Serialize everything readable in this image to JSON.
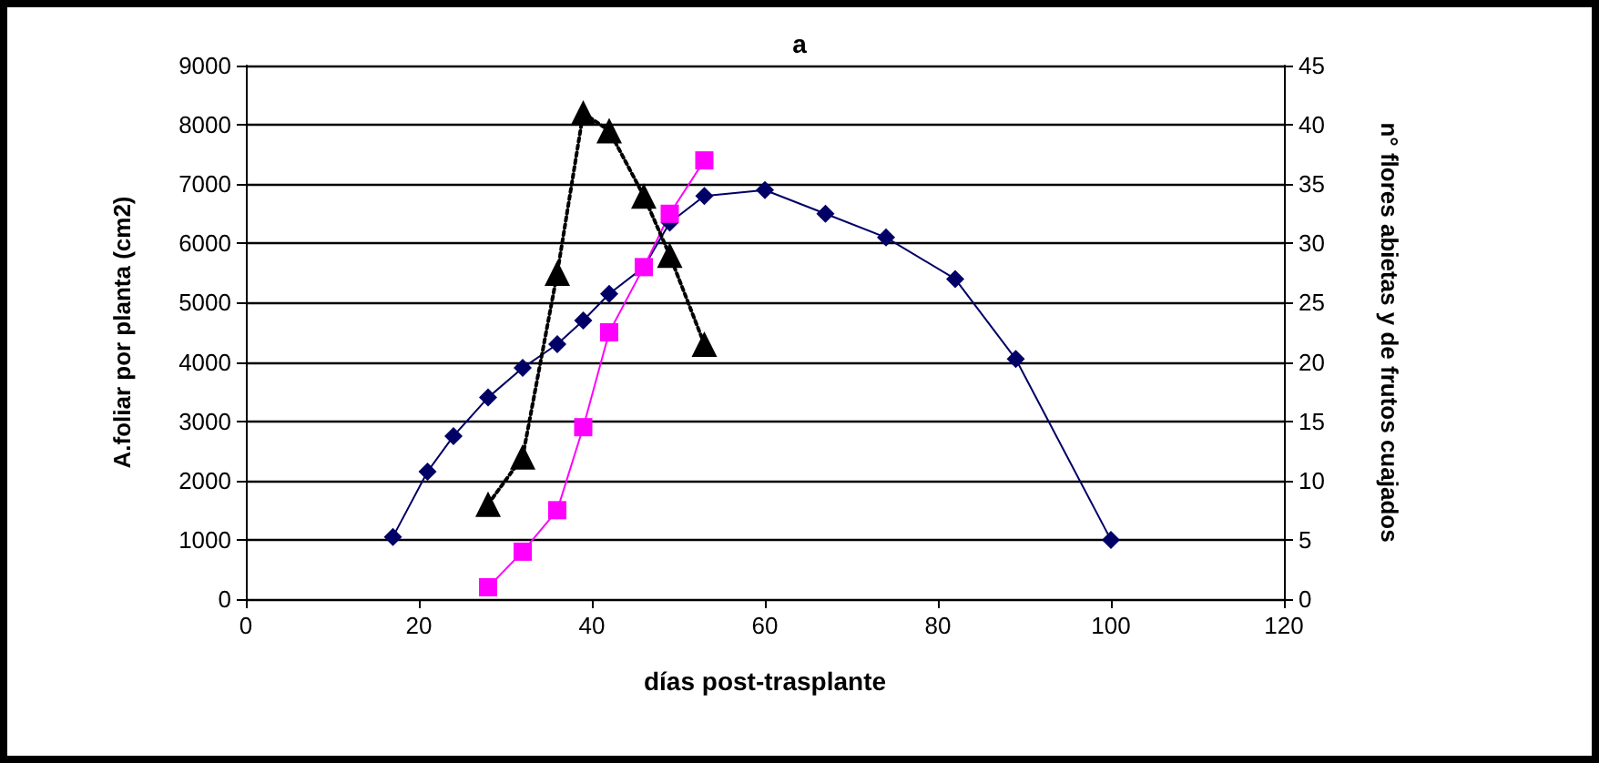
{
  "chart_data": {
    "type": "line",
    "title": "a",
    "xlabel": "días post-trasplante",
    "ylabel": "A.foliar por planta (cm2)",
    "y2label": "n° flores abietas y de frutos cuajados",
    "xlim": [
      0,
      120
    ],
    "xticks": [
      0,
      20,
      40,
      60,
      80,
      100,
      120
    ],
    "ylim": [
      0,
      9000
    ],
    "yticks": [
      0,
      1000,
      2000,
      3000,
      4000,
      5000,
      6000,
      7000,
      8000,
      9000
    ],
    "y2lim": [
      0,
      45
    ],
    "y2ticks": [
      0,
      5,
      10,
      15,
      20,
      25,
      30,
      35,
      40,
      45
    ],
    "grid": "y",
    "series": [
      {
        "color": "#000066",
        "marker": "diamond",
        "line_style": "solid",
        "x": [
          17,
          21,
          24,
          28,
          32,
          36,
          39,
          42,
          46,
          49,
          53,
          60,
          67,
          74,
          82,
          89,
          100
        ],
        "values": [
          1050,
          2150,
          2750,
          3400,
          3900,
          4300,
          4700,
          5150,
          5600,
          6350,
          6800,
          6900,
          6500,
          6100,
          5400,
          4050,
          1000
        ]
      },
      {
        "color": "#ff00ff",
        "marker": "square",
        "line_style": "solid",
        "axis": "y2",
        "x": [
          28,
          32,
          36,
          39,
          42,
          46,
          49,
          53
        ],
        "values": [
          1,
          4,
          7.5,
          14.5,
          22.5,
          28,
          32.5,
          37
        ]
      },
      {
        "color": "#000000",
        "marker": "triangle",
        "line_style": "dotted",
        "axis": "y2",
        "x": [
          28,
          32,
          36,
          39,
          42,
          46,
          49,
          53
        ],
        "values": [
          8,
          12,
          27.5,
          41,
          39.5,
          34,
          29,
          21.5
        ]
      }
    ]
  }
}
